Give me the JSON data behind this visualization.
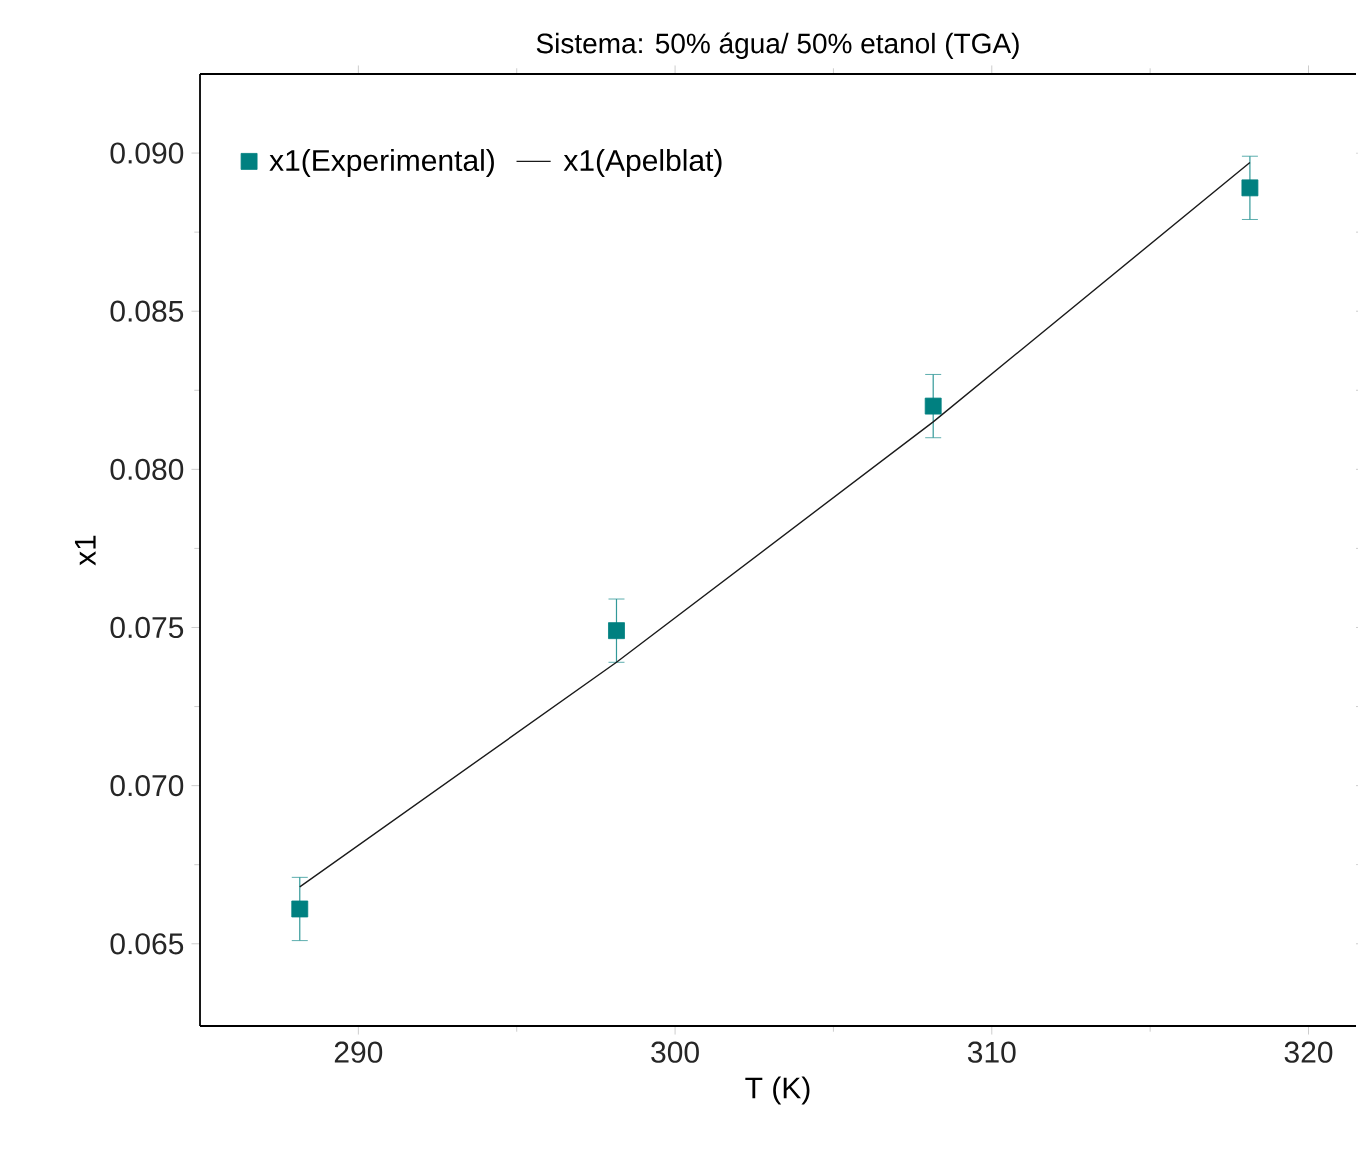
{
  "chart_data": {
    "type": "scatter",
    "title": "Sistema: 50% água/ 50% etanol (TGA)",
    "xlabel": "T (K)",
    "ylabel": "x1",
    "xlim": [
      285,
      321.5
    ],
    "ylim": [
      0.0624,
      0.0925
    ],
    "xticks": [
      290,
      300,
      310,
      320
    ],
    "yticks": [
      {
        "value": 0.065,
        "label": "0.065"
      },
      {
        "value": 0.07,
        "label": "0.070"
      },
      {
        "value": 0.075,
        "label": "0.075"
      },
      {
        "value": 0.08,
        "label": "0.080"
      },
      {
        "value": 0.085,
        "label": "0.085"
      },
      {
        "value": 0.09,
        "label": "0.090"
      }
    ],
    "legend": "top left",
    "grid": false,
    "series": [
      {
        "name": "x1(Experimental)",
        "marker": "square",
        "color": "#008080",
        "x": [
          288.15,
          298.15,
          308.15,
          318.15
        ],
        "values": [
          0.0661,
          0.0749,
          0.082,
          0.0889
        ],
        "errors": [
          0.001,
          0.001,
          0.001,
          0.001
        ]
      },
      {
        "name": "x1(Apelblat)",
        "type": "line",
        "marker": "none",
        "line_style": "solid",
        "color": "#1a1a1a",
        "x": [
          288.15,
          298.15,
          308.15,
          318.15
        ],
        "values": [
          0.0668,
          0.0739,
          0.0815,
          0.0897
        ]
      }
    ]
  }
}
